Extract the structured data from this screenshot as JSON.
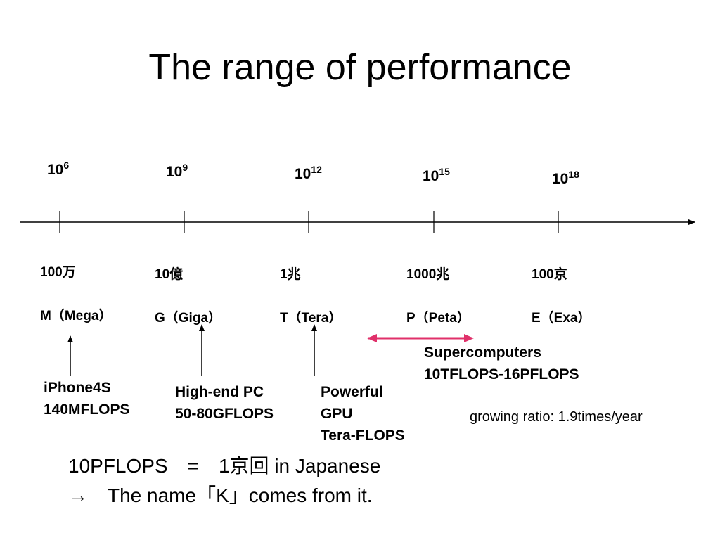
{
  "title": "The range of performance",
  "scale": [
    {
      "base": "10",
      "exp": "6"
    },
    {
      "base": "10",
      "exp": "9"
    },
    {
      "base": "10",
      "exp": "12"
    },
    {
      "base": "10",
      "exp": "15"
    },
    {
      "base": "10",
      "exp": "18"
    }
  ],
  "units": [
    {
      "japanese": "100万",
      "prefix": "M（Mega）"
    },
    {
      "japanese": "10億",
      "prefix": "G（Giga）"
    },
    {
      "japanese": "1兆",
      "prefix": "T（Tera）"
    },
    {
      "japanese": "1000兆",
      "prefix": "P（Peta）"
    },
    {
      "japanese": "100京",
      "prefix": "E（Exa）"
    }
  ],
  "examples": [
    {
      "lines": [
        "iPhone4S",
        "140MFLOPS"
      ]
    },
    {
      "lines": [
        "High-end PC",
        "50-80GFLOPS"
      ]
    },
    {
      "lines": [
        "Powerful",
        "GPU",
        "Tera-FLOPS"
      ]
    }
  ],
  "supercomputers": {
    "lines": [
      "Supercomputers",
      "10TFLOPS-16PFLOPS"
    ]
  },
  "growth": "growing ratio: 1.9times/year",
  "footer": [
    "10PFLOPS　=　1京回 in Japanese",
    "→　The name「K」comes from it."
  ]
}
